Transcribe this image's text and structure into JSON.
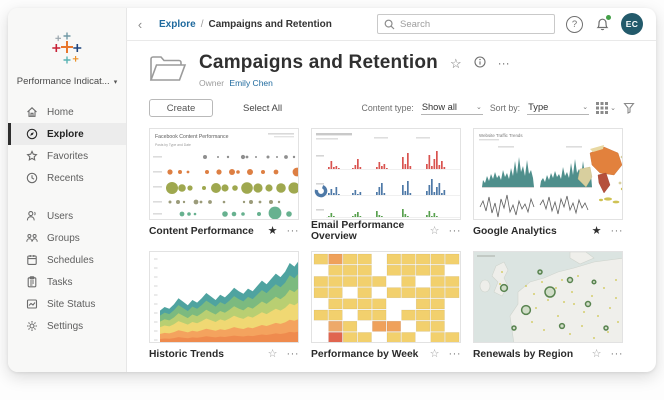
{
  "icons": {
    "ellipsis": "···",
    "caret_down": "⌄",
    "collapse": "‹",
    "star_filled": "★",
    "star_outline": "☆",
    "help": "?",
    "site_caret": "▾"
  },
  "topbar": {
    "breadcrumb": {
      "root": "Explore",
      "separator": "/",
      "current": "Campaigns and Retention"
    },
    "search": {
      "placeholder": "Search"
    },
    "avatar": {
      "initials": "EC"
    }
  },
  "sidebar": {
    "site_selector": {
      "label": "Performance Indicat..."
    },
    "primary_items": [
      {
        "label": "Home"
      },
      {
        "label": "Explore"
      },
      {
        "label": "Favorites"
      },
      {
        "label": "Recents"
      }
    ],
    "secondary_items": [
      {
        "label": "Users"
      },
      {
        "label": "Groups"
      },
      {
        "label": "Schedules"
      },
      {
        "label": "Tasks"
      },
      {
        "label": "Site Status"
      },
      {
        "label": "Settings"
      }
    ]
  },
  "header": {
    "title": "Campaigns and Retention",
    "owner_label": "Owner",
    "owner_name": "Emily Chen"
  },
  "toolbar": {
    "create": "Create",
    "select_all": "Select All",
    "content_type_label": "Content type:",
    "content_type_value": "Show all",
    "sort_by_label": "Sort by:",
    "sort_by_value": "Type"
  },
  "cards": [
    {
      "title": "Content Performance",
      "favorited": true
    },
    {
      "title": "Email Performance Overview",
      "favorited": false
    },
    {
      "title": "Google Analytics",
      "favorited": true
    },
    {
      "title": "Historic Trends",
      "favorited": false
    },
    {
      "title": "Performance by Week",
      "favorited": false
    },
    {
      "title": "Renewals by Region",
      "favorited": false
    }
  ],
  "thumb_text": {
    "content_performance_title": "Facebook Content Performance",
    "content_performance_subtitle": "Posts by Type and Date",
    "google_analytics_title": "Website Traffic Trends"
  },
  "thumb_charts": {
    "historic": {
      "values": [
        38,
        42,
        40,
        45,
        52,
        48,
        44,
        50,
        47,
        52,
        58,
        54,
        50,
        56,
        53,
        58,
        64,
        60,
        57,
        63,
        60,
        66,
        72,
        68,
        74,
        80,
        76,
        82,
        92,
        88,
        95
      ],
      "layers": [
        {
          "f": 1.0,
          "color": "#4fa3a0"
        },
        {
          "f": 0.85,
          "color": "#7cba7f"
        },
        {
          "f": 0.67,
          "color": "#b9cf72"
        },
        {
          "f": 0.5,
          "color": "#f0d873"
        },
        {
          "f": 0.3,
          "color": "#f4a35e"
        },
        {
          "f": 0.15,
          "color": "#ef8b4e"
        }
      ]
    },
    "heatmap": {
      "rows": [
        "YPYY.YYYYY",
        ".YYY.YYYY.",
        "YYYYY.Y.YY",
        "YY.Y.YYYYY",
        ".YYYY..YY.",
        "YY.YY.YYY.",
        ".OY.PP.YY.",
        ".RYY.YY.YY"
      ],
      "colors": {
        "Y": "#f2d06d",
        "P": "#efa15b",
        "O": "#eda96a",
        "R": "#e0654f"
      }
    },
    "email": {
      "cluster_x": [
        16,
        40,
        64,
        90,
        114
      ],
      "bar_w": 1.7,
      "bar_step": 2.5,
      "rows": [
        {
          "color": "#d9534f",
          "base": 40,
          "clusters": [
            [
              2,
              8,
              2,
              3,
              1
            ],
            [
              1,
              4,
              10,
              2
            ],
            [
              2,
              7,
              3,
              5,
              1
            ],
            [
              12,
              5,
              16,
              3
            ],
            [
              5,
              14,
              3,
              10,
              18,
              4,
              8,
              2
            ]
          ]
        },
        {
          "color": "#4e79a7",
          "base": 66,
          "clusters": [
            [
              2,
              6,
              2,
              8,
              1
            ],
            [
              2,
              5,
              1,
              3
            ],
            [
              3,
              8,
              12,
              2
            ],
            [
              10,
              4,
              14,
              2
            ],
            [
              4,
              10,
              16,
              3,
              8,
              12,
              2,
              5
            ]
          ]
        },
        {
          "color": "#59a14f",
          "base": 88,
          "clusters": [
            [
              1,
              4,
              1
            ],
            [
              1,
              3,
              5,
              1
            ],
            [
              6,
              2,
              1
            ],
            [
              8,
              3,
              1
            ],
            [
              2,
              6,
              1,
              4,
              1
            ]
          ]
        }
      ]
    }
  },
  "colors": {
    "accent_blue": "#1f6a9e",
    "avatar_bg": "#235a6b",
    "notification_green": "#43a047"
  }
}
